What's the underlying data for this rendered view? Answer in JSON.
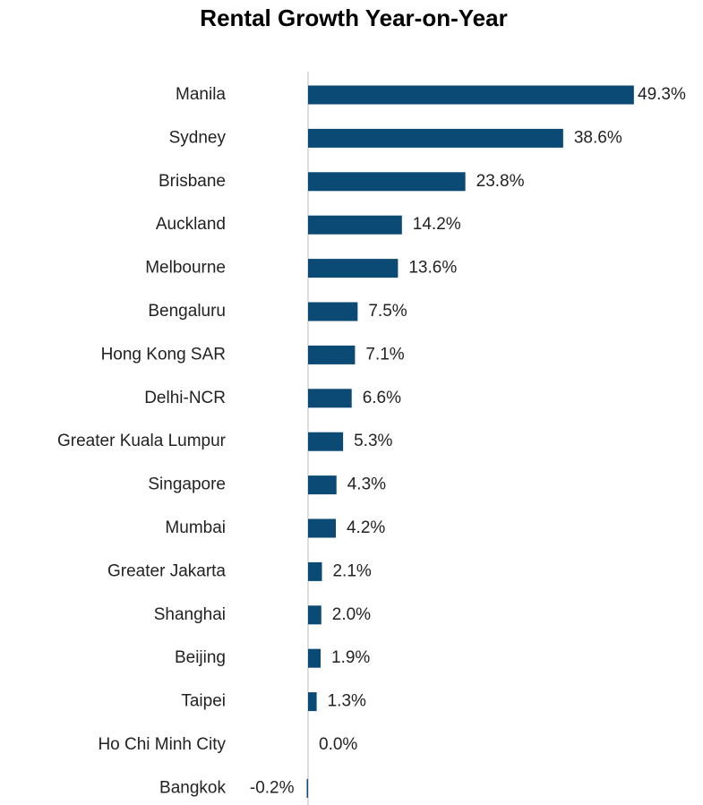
{
  "chart_data": {
    "type": "bar",
    "orientation": "horizontal",
    "title": "Rental Growth Year-on-Year",
    "categories": [
      "Manila",
      "Sydney",
      "Brisbane",
      "Auckland",
      "Melbourne",
      "Bengaluru",
      "Hong Kong SAR",
      "Delhi-NCR",
      "Greater Kuala Lumpur",
      "Singapore",
      "Mumbai",
      "Greater Jakarta",
      "Shanghai",
      "Beijing",
      "Taipei",
      "Ho Chi Minh City",
      "Bangkok"
    ],
    "values": [
      49.3,
      38.6,
      23.8,
      14.2,
      13.6,
      7.5,
      7.1,
      6.6,
      5.3,
      4.3,
      4.2,
      2.1,
      2.0,
      1.9,
      1.3,
      0.0,
      -0.2
    ],
    "value_labels": [
      "49.3%",
      "38.6%",
      "23.8%",
      "14.2%",
      "13.6%",
      "7.5%",
      "7.1%",
      "6.6%",
      "5.3%",
      "4.3%",
      "4.2%",
      "2.1%",
      "2.0%",
      "1.9%",
      "1.3%",
      "0.0%",
      "-0.2%"
    ],
    "color": "#0b4a74",
    "xlim": [
      0,
      50
    ]
  }
}
